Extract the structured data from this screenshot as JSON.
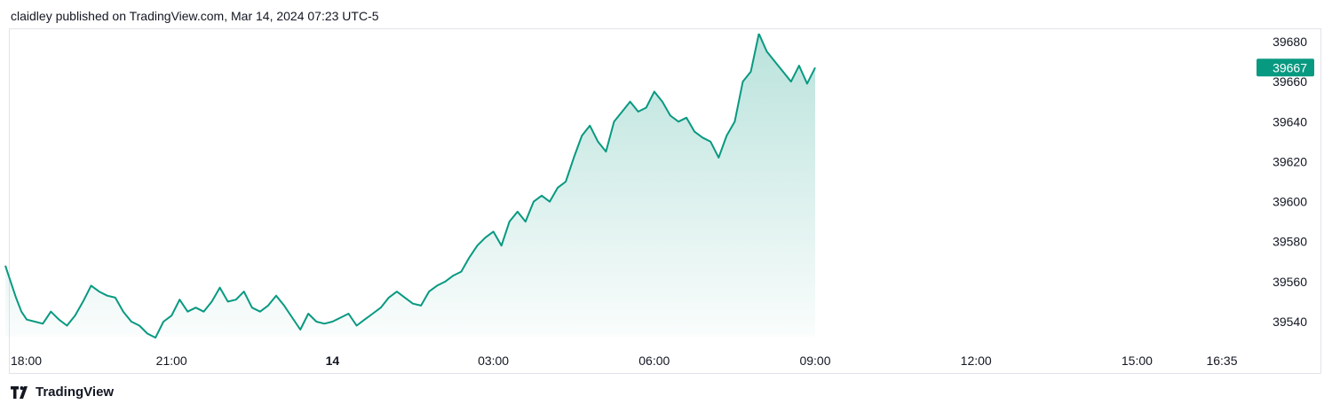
{
  "header": {
    "text": "claidley published on TradingView.com, Mar 14, 2024 07:23 UTC-5"
  },
  "footer": {
    "brand": "TradingView",
    "logo_icon": "tradingview-logo-icon"
  },
  "colors": {
    "line": "#089981",
    "fill": "#089981",
    "tag_bg": "#089981",
    "border": "#e0e3eb"
  },
  "chart_data": {
    "type": "area",
    "x_ticks": [
      {
        "label": "18:00",
        "t": 0
      },
      {
        "label": "21:00",
        "t": 3
      },
      {
        "label": "14",
        "t": 6,
        "bold": true
      },
      {
        "label": "03:00",
        "t": 9
      },
      {
        "label": "06:00",
        "t": 12
      },
      {
        "label": "09:00",
        "t": 15
      },
      {
        "label": "12:00",
        "t": 18
      },
      {
        "label": "15:00",
        "t": 21
      },
      {
        "label": "16:35",
        "t": 22.583
      }
    ],
    "y_ticks": [
      39540,
      39560,
      39580,
      39600,
      39620,
      39640,
      39660,
      39680
    ],
    "ylim": [
      39528,
      39685
    ],
    "xlim": [
      -0.1,
      23.8
    ],
    "last_price": 39667,
    "series": [
      {
        "x": [
          -0.1,
          0.0,
          0.1,
          0.2,
          0.3,
          0.45,
          0.6,
          0.75,
          0.9,
          1.05,
          1.2,
          1.35,
          1.5,
          1.65,
          1.8,
          1.95,
          2.1,
          2.25,
          2.4,
          2.55,
          2.7,
          2.85,
          3.0,
          3.15,
          3.3,
          3.45,
          3.6,
          3.75,
          3.9,
          4.05,
          4.2,
          4.35,
          4.5,
          4.65,
          4.8,
          4.95,
          5.1,
          5.25,
          5.4,
          5.55,
          5.7,
          5.85,
          6.0,
          6.15,
          6.3,
          6.45,
          6.6,
          6.75,
          6.9,
          7.05,
          7.2,
          7.35,
          7.5,
          7.65,
          7.8,
          7.95,
          8.1,
          8.25,
          8.4,
          8.55,
          8.7,
          8.85,
          9.0,
          9.15,
          9.3,
          9.45,
          9.6,
          9.75,
          9.9,
          10.05,
          10.2,
          10.35,
          10.5,
          10.65,
          10.8,
          10.95,
          11.1,
          11.25,
          11.4,
          11.55,
          11.7,
          11.85,
          12.0,
          12.15,
          12.3,
          12.45,
          12.6,
          12.75,
          12.9,
          13.05,
          13.2,
          13.35,
          13.5,
          13.65,
          13.8,
          13.95
        ],
        "y": [
          39568,
          39560,
          39552,
          39545,
          39541,
          39540,
          39539,
          39545,
          39541,
          39538,
          39543,
          39550,
          39558,
          39555,
          39553,
          39552,
          39545,
          39540,
          39538,
          39534,
          39532,
          39540,
          39543,
          39551,
          39545,
          39547,
          39545,
          39550,
          39557,
          39550,
          39551,
          39555,
          39547,
          39545,
          39548,
          39553,
          39548,
          39542,
          39536,
          39544,
          39540,
          39539,
          39540,
          39542,
          39544,
          39538,
          39541,
          39544,
          39547,
          39552,
          39555,
          39552,
          39549,
          39548,
          39555,
          39558,
          39560,
          39563,
          39565,
          39572,
          39578,
          39582,
          39585,
          39578,
          39590,
          39595,
          39590,
          39600,
          39603,
          39600,
          39607,
          39610,
          39622,
          39633,
          39638,
          39630,
          39625,
          39640,
          39645,
          39650,
          39645,
          39647,
          39655,
          39650,
          39643,
          39640,
          39642,
          39635,
          39632,
          39630,
          39622,
          39633,
          39640,
          39660,
          39665,
          39684
        ]
      },
      {
        "x": [
          13.95,
          14.1,
          14.25,
          14.4,
          14.55,
          14.7,
          14.85,
          15.0
        ],
        "y": [
          39684,
          39675,
          39670,
          39665,
          39660,
          39668,
          39659,
          39667
        ]
      }
    ]
  }
}
